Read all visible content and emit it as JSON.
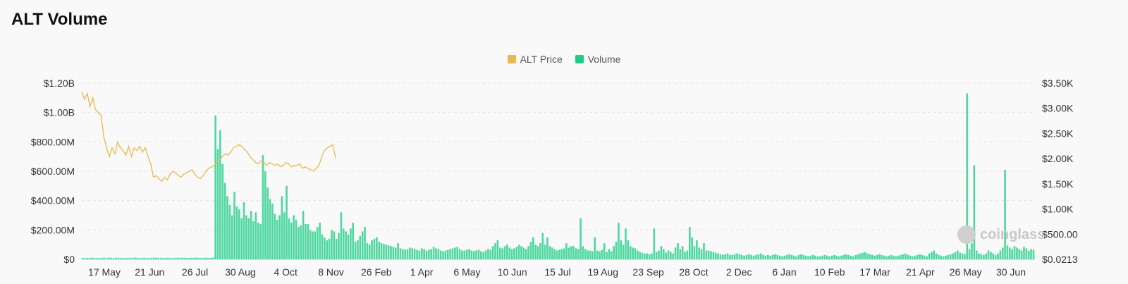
{
  "title": "ALT Volume",
  "legend": [
    {
      "label": "ALT Price",
      "color": "#eab84e"
    },
    {
      "label": "Volume",
      "color": "#1ecb88"
    }
  ],
  "watermark": "coinglass",
  "chart_data": {
    "type": "bar",
    "title": "ALT Volume",
    "xlabel": "",
    "ylabel": "",
    "grid": true,
    "legend_placement": "top-center",
    "x_tick_labels": [
      "17 May",
      "21 Jun",
      "26 Jul",
      "30 Aug",
      "4 Oct",
      "8 Nov",
      "26 Feb",
      "1 Apr",
      "6 May",
      "10 Jun",
      "15 Jul",
      "19 Aug",
      "23 Sep",
      "28 Oct",
      "2 Dec",
      "6 Jan",
      "10 Feb",
      "17 Mar",
      "21 Apr",
      "26 May",
      "30 Jun"
    ],
    "y_left": {
      "ticks": [
        "$0",
        "$200.00M",
        "$400.00M",
        "$600.00M",
        "$800.00M",
        "$1.00B",
        "$1.20B"
      ],
      "range": [
        0,
        1200000000
      ]
    },
    "y_right": {
      "ticks": [
        "$0.0213",
        "$500.00",
        "$1.00K",
        "$1.50K",
        "$2.00K",
        "$2.50K",
        "$3.00K",
        "$3.50K"
      ],
      "range": [
        0,
        3500
      ]
    },
    "series": [
      {
        "name": "ALT Price",
        "axis": "left",
        "values": [
          1140,
          1090,
          1130,
          1040,
          1100,
          1020,
          1000,
          980,
          830,
          760,
          700,
          760,
          720,
          800,
          760,
          740,
          710,
          770,
          700,
          760,
          740,
          770,
          730,
          760,
          700,
          650,
          560,
          570,
          550,
          530,
          560,
          540,
          580,
          600,
          590,
          570,
          560,
          580,
          590,
          600,
          610,
          580,
          560,
          550,
          570,
          600,
          620,
          630,
          640,
          660,
          680,
          700,
          720,
          710,
          730,
          760,
          770,
          780,
          770,
          750,
          730,
          700,
          680,
          660,
          650,
          670,
          660,
          640,
          660,
          650,
          640,
          650,
          630,
          640,
          660,
          650,
          630,
          640,
          640,
          650,
          620,
          630,
          620,
          610,
          600,
          620,
          640,
          700,
          740,
          760,
          770,
          780,
          690
        ]
      },
      {
        "name": "Volume",
        "axis": "left",
        "values": [
          10,
          8,
          10,
          9,
          12,
          10,
          8,
          9,
          10,
          11,
          8,
          12,
          10,
          9,
          10,
          11,
          10,
          9,
          10,
          9,
          10,
          10,
          12,
          10,
          9,
          10,
          11,
          10,
          9,
          10,
          12,
          11,
          10,
          9,
          10,
          10,
          11,
          10,
          9,
          10,
          12,
          10,
          11,
          10,
          9,
          10,
          11,
          10,
          12,
          10,
          9,
          10,
          11,
          10,
          10,
          12,
          980,
          750,
          880,
          650,
          520,
          430,
          370,
          300,
          460,
          360,
          340,
          280,
          390,
          300,
          280,
          330,
          260,
          320,
          250,
          240,
          710,
          600,
          490,
          410,
          380,
          310,
          270,
          300,
          430,
          320,
          500,
          280,
          250,
          300,
          270,
          220,
          230,
          330,
          240,
          240,
          200,
          190,
          190,
          220,
          250,
          170,
          150,
          130,
          140,
          200,
          190,
          140,
          180,
          320,
          210,
          190,
          170,
          210,
          250,
          120,
          130,
          160,
          190,
          220,
          110,
          100,
          130,
          140,
          150,
          120,
          110,
          105,
          100,
          95,
          90,
          85,
          80,
          110,
          75,
          70,
          65,
          70,
          80,
          75,
          70,
          65,
          60,
          75,
          70,
          60,
          65,
          70,
          85,
          75,
          70,
          60,
          55,
          60,
          65,
          70,
          75,
          80,
          85,
          70,
          60,
          60,
          65,
          70,
          60,
          55,
          60,
          65,
          55,
          50,
          60,
          70,
          65,
          90,
          110,
          130,
          80,
          75,
          90,
          100,
          80,
          70,
          75,
          85,
          100,
          90,
          80,
          70,
          90,
          120,
          150,
          100,
          90,
          110,
          180,
          100,
          150,
          90,
          80,
          70,
          60,
          65,
          70,
          75,
          110,
          80,
          90,
          90,
          75,
          70,
          280,
          90,
          70,
          60,
          60,
          55,
          150,
          60,
          55,
          65,
          110,
          50,
          70,
          55,
          90,
          120,
          250,
          130,
          100,
          210,
          130,
          90,
          80,
          75,
          60,
          50,
          45,
          40,
          40,
          35,
          40,
          210,
          50,
          60,
          90,
          70,
          45,
          60,
          50,
          40,
          80,
          110,
          70,
          90,
          50,
          60,
          220,
          150,
          90,
          130,
          80,
          70,
          110,
          60,
          60,
          55,
          50,
          45,
          40,
          35,
          30,
          35,
          40,
          30,
          30,
          35,
          40,
          35,
          30,
          25,
          30,
          35,
          30,
          25,
          30,
          35,
          40,
          30,
          25,
          30,
          25,
          30,
          35,
          30,
          25,
          20,
          25,
          30,
          35,
          30,
          25,
          20,
          30,
          35,
          30,
          25,
          20,
          25,
          30,
          25,
          20,
          20,
          25,
          30,
          25,
          20,
          25,
          30,
          25,
          20,
          25,
          30,
          35,
          30,
          25,
          20,
          30,
          35,
          40,
          45,
          50,
          40,
          35,
          30,
          25,
          30,
          35,
          30,
          25,
          20,
          25,
          30,
          25,
          20,
          25,
          30,
          35,
          40,
          30,
          25,
          20,
          25,
          30,
          35,
          30,
          25,
          20,
          40,
          50,
          60,
          40,
          30,
          25,
          20,
          25,
          30,
          35,
          40,
          50,
          60,
          45,
          40,
          35,
          1130,
          70,
          110,
          640,
          60,
          40,
          35,
          30,
          40,
          60,
          50,
          40,
          30,
          40,
          60,
          80,
          610,
          95,
          80,
          70,
          90,
          80,
          70,
          60,
          85,
          75,
          60,
          70,
          65
        ]
      }
    ]
  }
}
